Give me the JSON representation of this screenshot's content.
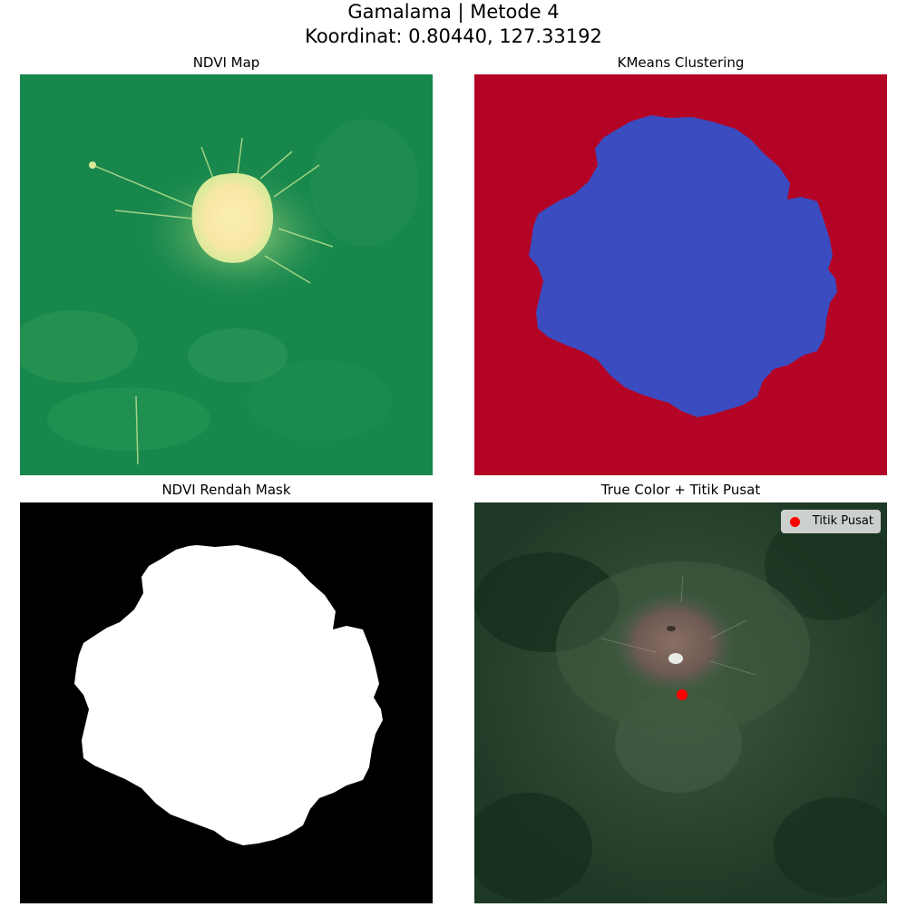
{
  "figure": {
    "title_line1": "Gamalama | Metode 4",
    "title_line2": "Koordinat: 0.80440, 127.33192"
  },
  "panels": {
    "ndvi": {
      "title": "NDVI Map"
    },
    "kmeans": {
      "title": "KMeans Clustering"
    },
    "mask": {
      "title": "NDVI Rendah Mask"
    },
    "truecolor": {
      "title": "True Color + Titik Pusat"
    }
  },
  "legend": {
    "label": "Titik Pusat",
    "marker_color": "#ff0000"
  },
  "colors": {
    "ndvi_green": "#17874c",
    "ndvi_light": "#fcf0b0",
    "kmeans_background": "#b40426",
    "kmeans_cluster": "#3b4cc0",
    "mask_background": "#000000",
    "mask_foreground": "#ffffff"
  }
}
